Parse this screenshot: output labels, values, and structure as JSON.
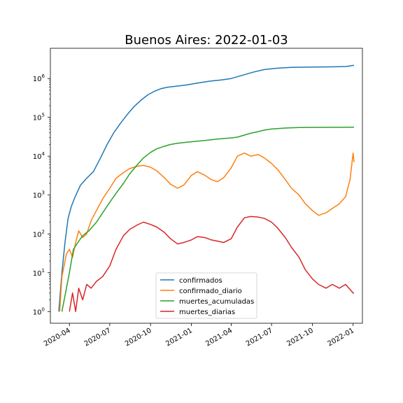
{
  "chart_data": {
    "type": "line",
    "title": "Buenos Aires: 2022-01-03",
    "xlabel": "",
    "ylabel": "",
    "yscale": "log",
    "ylim": [
      0.5,
      6000000
    ],
    "xlim": [
      "2020-02-18",
      "2022-01-22"
    ],
    "x_ticks": [
      {
        "date": "2020-04-01",
        "label": "2020-04"
      },
      {
        "date": "2020-07-01",
        "label": "2020-07"
      },
      {
        "date": "2020-10-01",
        "label": "2020-10"
      },
      {
        "date": "2021-01-01",
        "label": "2021-01"
      },
      {
        "date": "2021-04-01",
        "label": "2021-04"
      },
      {
        "date": "2021-07-01",
        "label": "2021-07"
      },
      {
        "date": "2021-10-01",
        "label": "2021-10"
      },
      {
        "date": "2022-01-01",
        "label": "2022-01"
      }
    ],
    "y_ticks": [
      {
        "value": 1,
        "base": "10",
        "exp": "0"
      },
      {
        "value": 10,
        "base": "10",
        "exp": "1"
      },
      {
        "value": 100,
        "base": "10",
        "exp": "2"
      },
      {
        "value": 1000,
        "base": "10",
        "exp": "3"
      },
      {
        "value": 10000,
        "base": "10",
        "exp": "4"
      },
      {
        "value": 100000,
        "base": "10",
        "exp": "5"
      },
      {
        "value": 1000000,
        "base": "10",
        "exp": "6"
      }
    ],
    "grid": false,
    "legend_position": "bottom-center",
    "series": [
      {
        "name": "confirmados",
        "color": "#1f77b4",
        "points": [
          [
            "2020-03-08",
            1
          ],
          [
            "2020-03-15",
            10
          ],
          [
            "2020-03-22",
            60
          ],
          [
            "2020-03-29",
            250
          ],
          [
            "2020-04-05",
            500
          ],
          [
            "2020-04-12",
            800
          ],
          [
            "2020-04-19",
            1200
          ],
          [
            "2020-04-26",
            1800
          ],
          [
            "2020-05-10",
            2700
          ],
          [
            "2020-05-25",
            4000
          ],
          [
            "2020-06-10",
            9000
          ],
          [
            "2020-06-25",
            20000
          ],
          [
            "2020-07-10",
            40000
          ],
          [
            "2020-07-25",
            70000
          ],
          [
            "2020-08-10",
            120000
          ],
          [
            "2020-08-25",
            190000
          ],
          [
            "2020-09-10",
            280000
          ],
          [
            "2020-09-25",
            380000
          ],
          [
            "2020-10-10",
            470000
          ],
          [
            "2020-10-25",
            550000
          ],
          [
            "2020-11-10",
            600000
          ],
          [
            "2020-12-01",
            640000
          ],
          [
            "2020-12-20",
            680000
          ],
          [
            "2021-01-15",
            760000
          ],
          [
            "2021-02-10",
            850000
          ],
          [
            "2021-03-10",
            920000
          ],
          [
            "2021-04-01",
            1000000
          ],
          [
            "2021-04-25",
            1200000
          ],
          [
            "2021-05-20",
            1450000
          ],
          [
            "2021-06-15",
            1700000
          ],
          [
            "2021-07-15",
            1850000
          ],
          [
            "2021-08-15",
            1930000
          ],
          [
            "2021-09-15",
            1960000
          ],
          [
            "2021-10-15",
            1980000
          ],
          [
            "2021-11-15",
            2000000
          ],
          [
            "2021-12-15",
            2030000
          ],
          [
            "2022-01-03",
            2200000
          ]
        ]
      },
      {
        "name": "confirmado_diario",
        "color": "#ff7f0e",
        "points": [
          [
            "2020-03-10",
            1
          ],
          [
            "2020-03-15",
            8
          ],
          [
            "2020-03-20",
            15
          ],
          [
            "2020-03-25",
            30
          ],
          [
            "2020-04-01",
            40
          ],
          [
            "2020-04-08",
            25
          ],
          [
            "2020-04-15",
            60
          ],
          [
            "2020-04-22",
            120
          ],
          [
            "2020-05-01",
            80
          ],
          [
            "2020-05-10",
            100
          ],
          [
            "2020-05-20",
            220
          ],
          [
            "2020-06-01",
            400
          ],
          [
            "2020-06-15",
            800
          ],
          [
            "2020-07-01",
            1500
          ],
          [
            "2020-07-15",
            2700
          ],
          [
            "2020-08-01",
            3800
          ],
          [
            "2020-08-15",
            4800
          ],
          [
            "2020-09-01",
            5500
          ],
          [
            "2020-09-15",
            5800
          ],
          [
            "2020-10-01",
            5200
          ],
          [
            "2020-10-15",
            4200
          ],
          [
            "2020-11-01",
            2800
          ],
          [
            "2020-11-15",
            1900
          ],
          [
            "2020-12-01",
            1500
          ],
          [
            "2020-12-15",
            1800
          ],
          [
            "2021-01-01",
            3200
          ],
          [
            "2021-01-15",
            4000
          ],
          [
            "2021-02-01",
            3200
          ],
          [
            "2021-02-15",
            2500
          ],
          [
            "2021-03-01",
            2200
          ],
          [
            "2021-03-15",
            2800
          ],
          [
            "2021-04-01",
            5000
          ],
          [
            "2021-04-15",
            10000
          ],
          [
            "2021-05-01",
            12000
          ],
          [
            "2021-05-15",
            10000
          ],
          [
            "2021-06-01",
            11000
          ],
          [
            "2021-06-15",
            9000
          ],
          [
            "2021-07-01",
            6500
          ],
          [
            "2021-07-15",
            4500
          ],
          [
            "2021-08-01",
            2500
          ],
          [
            "2021-08-15",
            1500
          ],
          [
            "2021-09-01",
            1000
          ],
          [
            "2021-09-15",
            600
          ],
          [
            "2021-10-01",
            400
          ],
          [
            "2021-10-15",
            300
          ],
          [
            "2021-11-01",
            350
          ],
          [
            "2021-11-15",
            450
          ],
          [
            "2021-12-01",
            600
          ],
          [
            "2021-12-15",
            900
          ],
          [
            "2021-12-25",
            2500
          ],
          [
            "2022-01-01",
            12000
          ],
          [
            "2022-01-03",
            7000
          ]
        ]
      },
      {
        "name": "muertes_acumuladas",
        "color": "#2ca02c",
        "points": [
          [
            "2020-03-15",
            1
          ],
          [
            "2020-04-01",
            10
          ],
          [
            "2020-04-10",
            40
          ],
          [
            "2020-04-20",
            60
          ],
          [
            "2020-05-01",
            90
          ],
          [
            "2020-05-15",
            120
          ],
          [
            "2020-06-01",
            200
          ],
          [
            "2020-06-15",
            350
          ],
          [
            "2020-07-01",
            650
          ],
          [
            "2020-07-15",
            1100
          ],
          [
            "2020-08-01",
            2000
          ],
          [
            "2020-08-15",
            3500
          ],
          [
            "2020-09-01",
            6000
          ],
          [
            "2020-09-15",
            9000
          ],
          [
            "2020-10-01",
            12500
          ],
          [
            "2020-10-15",
            15500
          ],
          [
            "2020-11-01",
            18000
          ],
          [
            "2020-11-15",
            20000
          ],
          [
            "2020-12-01",
            21500
          ],
          [
            "2020-12-15",
            22500
          ],
          [
            "2021-01-01",
            23500
          ],
          [
            "2021-02-01",
            25500
          ],
          [
            "2021-03-01",
            27500
          ],
          [
            "2021-04-01",
            29500
          ],
          [
            "2021-04-15",
            31000
          ],
          [
            "2021-05-01",
            35000
          ],
          [
            "2021-05-15",
            39000
          ],
          [
            "2021-06-01",
            43000
          ],
          [
            "2021-06-15",
            47000
          ],
          [
            "2021-07-01",
            50000
          ],
          [
            "2021-08-01",
            53000
          ],
          [
            "2021-09-01",
            54500
          ],
          [
            "2021-10-01",
            55000
          ],
          [
            "2021-11-01",
            55200
          ],
          [
            "2021-12-01",
            55400
          ],
          [
            "2022-01-03",
            55700
          ]
        ]
      },
      {
        "name": "muertes_diarias",
        "color": "#d62728",
        "points": [
          [
            "2020-04-01",
            1
          ],
          [
            "2020-04-08",
            3
          ],
          [
            "2020-04-15",
            1
          ],
          [
            "2020-04-22",
            4
          ],
          [
            "2020-05-01",
            2
          ],
          [
            "2020-05-10",
            5
          ],
          [
            "2020-05-20",
            4
          ],
          [
            "2020-06-01",
            6
          ],
          [
            "2020-06-15",
            8
          ],
          [
            "2020-07-01",
            15
          ],
          [
            "2020-07-15",
            40
          ],
          [
            "2020-08-01",
            90
          ],
          [
            "2020-08-15",
            130
          ],
          [
            "2020-09-01",
            170
          ],
          [
            "2020-09-15",
            200
          ],
          [
            "2020-10-01",
            175
          ],
          [
            "2020-10-15",
            150
          ],
          [
            "2020-11-01",
            110
          ],
          [
            "2020-11-15",
            75
          ],
          [
            "2020-12-01",
            55
          ],
          [
            "2020-12-15",
            60
          ],
          [
            "2021-01-01",
            70
          ],
          [
            "2021-01-15",
            85
          ],
          [
            "2021-02-01",
            80
          ],
          [
            "2021-02-15",
            70
          ],
          [
            "2021-03-01",
            65
          ],
          [
            "2021-03-15",
            60
          ],
          [
            "2021-04-01",
            75
          ],
          [
            "2021-04-15",
            150
          ],
          [
            "2021-05-01",
            260
          ],
          [
            "2021-05-15",
            280
          ],
          [
            "2021-06-01",
            270
          ],
          [
            "2021-06-15",
            250
          ],
          [
            "2021-07-01",
            200
          ],
          [
            "2021-07-15",
            140
          ],
          [
            "2021-08-01",
            80
          ],
          [
            "2021-08-15",
            45
          ],
          [
            "2021-09-01",
            25
          ],
          [
            "2021-09-15",
            12
          ],
          [
            "2021-10-01",
            7
          ],
          [
            "2021-10-15",
            5
          ],
          [
            "2021-11-01",
            4
          ],
          [
            "2021-11-15",
            5
          ],
          [
            "2021-12-01",
            4
          ],
          [
            "2021-12-15",
            5
          ],
          [
            "2022-01-01",
            3
          ],
          [
            "2022-01-03",
            3
          ]
        ]
      }
    ]
  }
}
